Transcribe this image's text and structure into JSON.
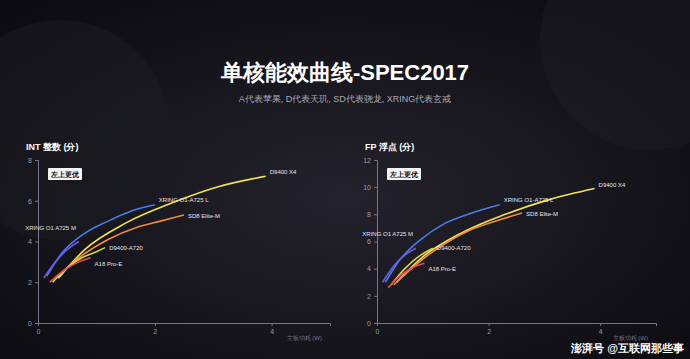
{
  "header": {
    "title": "单核能效曲线-SPEC2017",
    "subtitle": "A代表苹果, D代表天玑, SD代表骁龙, XRING代表玄戒"
  },
  "watermark": "澎湃号 @互联网那些事",
  "chart_data": [
    {
      "type": "line",
      "title": "INT 整数 (分)",
      "x_label": "主板功耗 (W)",
      "annotation": "左上更优",
      "xlim": [
        0,
        5
      ],
      "xticks": [
        0,
        2,
        4
      ],
      "ylim": [
        0,
        8
      ],
      "yticks": [
        0,
        2,
        4,
        6,
        8
      ],
      "grid": false,
      "series": [
        {
          "name": "D9400 X4",
          "color": "#f2e35a",
          "x": [
            0.35,
            0.8,
            1.5,
            2.3,
            3.1,
            3.9
          ],
          "values": [
            2.2,
            3.6,
            4.9,
            5.9,
            6.7,
            7.2
          ]
        },
        {
          "name": "XRING O1-A725 L",
          "color": "#4a7de8",
          "x": [
            0.15,
            0.4,
            0.8,
            1.2,
            1.6,
            2.0
          ],
          "values": [
            2.3,
            3.4,
            4.4,
            5.0,
            5.5,
            5.8
          ]
        },
        {
          "name": "SD8 Elite-M",
          "color": "#f08a3c",
          "x": [
            0.3,
            0.7,
            1.2,
            1.7,
            2.1,
            2.5
          ],
          "values": [
            2.2,
            3.2,
            4.1,
            4.7,
            5.0,
            5.3
          ]
        },
        {
          "name": "D9400-A720",
          "color": "#d6d84a",
          "x": [
            0.25,
            0.5,
            0.75,
            1.0,
            1.15
          ],
          "values": [
            2.0,
            2.7,
            3.2,
            3.5,
            3.7
          ]
        },
        {
          "name": "XRING O1 A725 M",
          "color": "#6a5cf0",
          "x": [
            0.1,
            0.3,
            0.5,
            0.7
          ],
          "values": [
            2.2,
            3.0,
            3.6,
            4.0
          ]
        },
        {
          "name": "A18 Pro-E",
          "color": "#e84a5a",
          "x": [
            0.2,
            0.45,
            0.7,
            0.9
          ],
          "values": [
            2.0,
            2.6,
            3.0,
            3.2
          ]
        }
      ]
    },
    {
      "type": "line",
      "title": "FP 浮点 (分)",
      "x_label": "主板功耗 (W)",
      "annotation": "左上更优",
      "xlim": [
        0,
        5
      ],
      "xticks": [
        0,
        2,
        4
      ],
      "ylim": [
        0,
        12
      ],
      "yticks": [
        0,
        2,
        4,
        6,
        8,
        10,
        12
      ],
      "grid": false,
      "series": [
        {
          "name": "D9400 X4",
          "color": "#f2e35a",
          "x": [
            0.35,
            0.8,
            1.5,
            2.3,
            3.1,
            3.9
          ],
          "values": [
            3.0,
            4.8,
            6.6,
            8.0,
            9.1,
            9.9
          ]
        },
        {
          "name": "XRING O1-A725 L",
          "color": "#4a7de8",
          "x": [
            0.15,
            0.4,
            0.8,
            1.2,
            1.7,
            2.2
          ],
          "values": [
            3.0,
            4.6,
            6.2,
            7.3,
            8.1,
            8.7
          ]
        },
        {
          "name": "SD8 Elite-M",
          "color": "#f08a3c",
          "x": [
            0.3,
            0.7,
            1.2,
            1.7,
            2.2,
            2.6
          ],
          "values": [
            2.8,
            4.3,
            5.8,
            6.9,
            7.6,
            8.1
          ]
        },
        {
          "name": "D9400-A720",
          "color": "#d6d84a",
          "x": [
            0.25,
            0.5,
            0.75,
            1.0
          ],
          "values": [
            2.8,
            4.0,
            4.9,
            5.5
          ]
        },
        {
          "name": "XRING O1 A725 M",
          "color": "#6a5cf0",
          "x": [
            0.1,
            0.3,
            0.5,
            0.7
          ],
          "values": [
            3.0,
            4.2,
            5.0,
            5.5
          ]
        },
        {
          "name": "A18 Pro-E",
          "color": "#e84a5a",
          "x": [
            0.2,
            0.45,
            0.7,
            0.85
          ],
          "values": [
            2.6,
            3.6,
            4.2,
            4.4
          ]
        }
      ]
    }
  ]
}
